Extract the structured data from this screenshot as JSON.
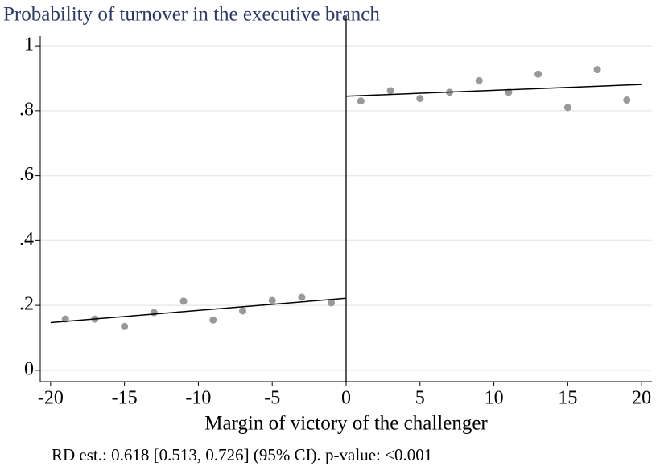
{
  "chart_data": {
    "type": "scatter",
    "title": "Probability of turnover in the executive branch",
    "x_label": "Margin of victory of the challenger",
    "note": "RD est.: 0.618 [0.513, 0.726] (95% CI). p-value: <0.001",
    "series": [
      {
        "color": "#999999",
        "x": [
          -19,
          -17,
          -15,
          -13,
          -11,
          -9,
          -7,
          -5,
          -3,
          -1,
          1,
          3,
          5,
          7,
          9,
          11,
          13,
          15,
          17,
          19
        ],
        "values": [
          0.158,
          0.158,
          0.135,
          0.178,
          0.213,
          0.155,
          0.183,
          0.215,
          0.225,
          0.208,
          0.83,
          0.862,
          0.838,
          0.857,
          0.893,
          0.857,
          0.913,
          0.81,
          0.927,
          0.833
        ]
      }
    ],
    "fit_lines": [
      {
        "color": "#000000",
        "x": [
          -20,
          0
        ],
        "values": [
          0.147,
          0.222
        ]
      },
      {
        "color": "#000000",
        "x": [
          0,
          20
        ],
        "values": [
          0.845,
          0.881
        ]
      }
    ],
    "cutoff": 0,
    "xlim": [
      -20.7,
      20.7
    ],
    "ylim": [
      -0.035,
      1.03
    ],
    "xticks": [
      -20,
      -15,
      -10,
      -5,
      0,
      5,
      10,
      15,
      20
    ],
    "yticks": [
      0,
      {
        "value": 0.2,
        "label": ".2"
      },
      {
        "value": 0.4,
        "label": ".4"
      },
      {
        "value": 0.6,
        "label": ".6"
      },
      {
        "value": 0.8,
        "label": ".8"
      },
      1
    ],
    "grid": true
  }
}
